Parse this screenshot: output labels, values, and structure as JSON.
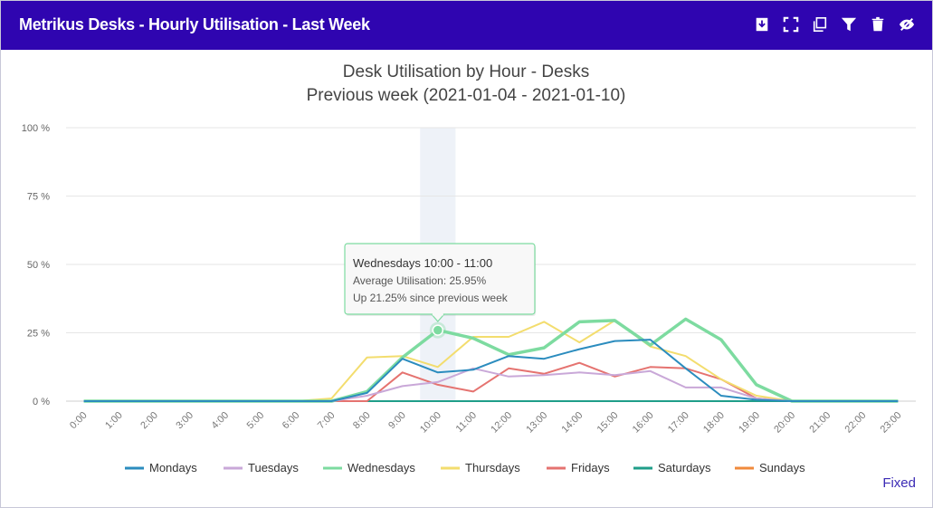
{
  "header": {
    "title": "Metrikus Desks - Hourly Utilisation - Last Week",
    "icons": [
      "download-icon",
      "fullscreen-icon",
      "copy-icon",
      "filter-icon",
      "trash-icon",
      "hide-icon"
    ]
  },
  "footer": {
    "fixed_label": "Fixed"
  },
  "chart_data": {
    "type": "line",
    "title": "Desk Utilisation by Hour - Desks",
    "subtitle": "Previous week (2021-01-04 - 2021-01-10)",
    "categories": [
      "0:00",
      "1:00",
      "2:00",
      "3:00",
      "4:00",
      "5:00",
      "6:00",
      "7:00",
      "8:00",
      "9:00",
      "10:00",
      "11:00",
      "12:00",
      "13:00",
      "14:00",
      "15:00",
      "16:00",
      "17:00",
      "18:00",
      "19:00",
      "20:00",
      "21:00",
      "22:00",
      "23:00"
    ],
    "yticks": [
      "0 %",
      "25 %",
      "50 %",
      "75 %",
      "100 %"
    ],
    "ylim": [
      0,
      100
    ],
    "legend_position": "bottom",
    "highlight_category": "10:00",
    "series": [
      {
        "name": "Mondays",
        "color": "#2b8cbe",
        "values": [
          0,
          0,
          0,
          0,
          0,
          0,
          0,
          0,
          3,
          15.5,
          10.5,
          11.5,
          16.5,
          15.5,
          19,
          22,
          22.5,
          12,
          2,
          0.5,
          0,
          0,
          0,
          0
        ]
      },
      {
        "name": "Tuesdays",
        "color": "#c9a8d8",
        "values": [
          0,
          0,
          0,
          0,
          0,
          0,
          0,
          0,
          2,
          5.5,
          7,
          12,
          9,
          9.5,
          10.5,
          9.5,
          11,
          5,
          5,
          1,
          0,
          0,
          0,
          0
        ]
      },
      {
        "name": "Wednesdays",
        "color": "#7ddba0",
        "values": [
          0,
          0,
          0,
          0,
          0,
          0,
          0,
          0,
          3.5,
          16,
          25.95,
          23,
          17,
          19.5,
          29,
          29.5,
          20.5,
          30,
          22.5,
          6,
          0,
          0,
          0,
          0
        ]
      },
      {
        "name": "Thursdays",
        "color": "#f3dd6e",
        "values": [
          0,
          0,
          0,
          0,
          0,
          0,
          0,
          1,
          16,
          16.5,
          12.5,
          23.5,
          23.5,
          29,
          21.5,
          29.5,
          20,
          16.5,
          8,
          2,
          0,
          0,
          0,
          0
        ]
      },
      {
        "name": "Fridays",
        "color": "#e57370",
        "values": [
          0,
          0,
          0,
          0,
          0,
          0,
          0,
          0,
          0,
          10.5,
          6,
          3.5,
          12,
          10,
          14,
          9,
          12.5,
          12,
          8,
          1,
          0,
          0,
          0,
          0
        ]
      },
      {
        "name": "Saturdays",
        "color": "#1f9e89",
        "values": [
          0,
          0,
          0,
          0,
          0,
          0,
          0,
          0,
          0,
          0,
          0,
          0,
          0,
          0,
          0,
          0,
          0,
          0,
          0,
          0,
          0,
          0,
          0,
          0
        ]
      },
      {
        "name": "Sundays",
        "color": "#f08a3c",
        "values": [
          0,
          0,
          0,
          0,
          0,
          0,
          0,
          0,
          0,
          0,
          0,
          0,
          0,
          0,
          0,
          0,
          0,
          0,
          0,
          0,
          0,
          0,
          0,
          0
        ]
      }
    ],
    "tooltip": {
      "title": "Wednesdays 10:00 - 11:00",
      "line1": "Average Utilisation: 25.95%",
      "line2": "Up 21.25% since previous week",
      "series": "Wednesdays",
      "category": "10:00",
      "value": 25.95
    }
  }
}
